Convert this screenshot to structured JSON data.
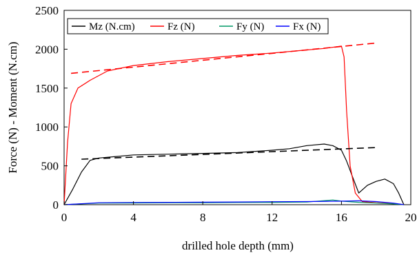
{
  "chart_data": {
    "type": "line",
    "xlabel": "drilled hole depth (mm)",
    "ylabel": "Force (N) - Moment (N.cm)",
    "xlim": [
      0,
      20
    ],
    "ylim": [
      0,
      2500
    ],
    "x_ticks": [
      "0",
      "4",
      "8",
      "12",
      "16",
      "20"
    ],
    "y_ticks": [
      "0",
      "500",
      "1000",
      "1500",
      "2000",
      "2500"
    ],
    "grid": false,
    "legend_position": "top",
    "series": [
      {
        "name": "Mz (N.cm)",
        "color": "#000000",
        "style": "solid",
        "x": [
          0,
          0.5,
          1,
          1.5,
          2,
          3,
          4,
          6,
          8,
          10,
          12,
          13,
          14,
          15,
          15.5,
          16,
          16.3,
          16.6,
          17,
          17.5,
          18,
          18.5,
          19,
          19.3,
          19.6
        ],
        "y": [
          0,
          200,
          420,
          570,
          600,
          620,
          640,
          650,
          660,
          670,
          700,
          720,
          760,
          780,
          760,
          700,
          560,
          380,
          150,
          250,
          300,
          330,
          270,
          150,
          0
        ]
      },
      {
        "name": "Fz (N)",
        "color": "#ff0000",
        "style": "solid",
        "x": [
          0,
          0.2,
          0.4,
          0.8,
          1.5,
          2.5,
          4,
          6,
          8,
          10,
          12,
          14,
          15,
          16,
          16.15,
          16.3,
          16.5,
          16.8,
          17.2,
          18,
          19,
          19.6
        ],
        "y": [
          0,
          800,
          1300,
          1500,
          1600,
          1720,
          1790,
          1840,
          1880,
          1920,
          1950,
          1990,
          2010,
          2040,
          1900,
          1200,
          500,
          150,
          40,
          25,
          15,
          0
        ]
      },
      {
        "name": "Fy (N)",
        "color": "#009966",
        "style": "solid",
        "x": [
          0,
          2,
          4,
          6,
          8,
          10,
          12,
          14,
          15.5,
          16,
          17,
          18,
          19,
          19.6
        ],
        "y": [
          0,
          20,
          22,
          25,
          25,
          28,
          30,
          35,
          60,
          45,
          30,
          20,
          10,
          0
        ]
      },
      {
        "name": "Fx (N)",
        "color": "#0000ff",
        "style": "solid",
        "x": [
          0,
          2,
          4,
          6,
          8,
          10,
          12,
          14,
          16,
          17,
          18,
          19,
          19.6
        ],
        "y": [
          0,
          25,
          28,
          30,
          32,
          35,
          38,
          40,
          45,
          50,
          40,
          20,
          0
        ]
      },
      {
        "color": "#ff0000",
        "style": "dashed",
        "x": [
          0.4,
          18
        ],
        "y": [
          1690,
          2080
        ]
      },
      {
        "color": "#000000",
        "style": "dashed",
        "x": [
          1,
          18
        ],
        "y": [
          585,
          735
        ]
      }
    ]
  }
}
